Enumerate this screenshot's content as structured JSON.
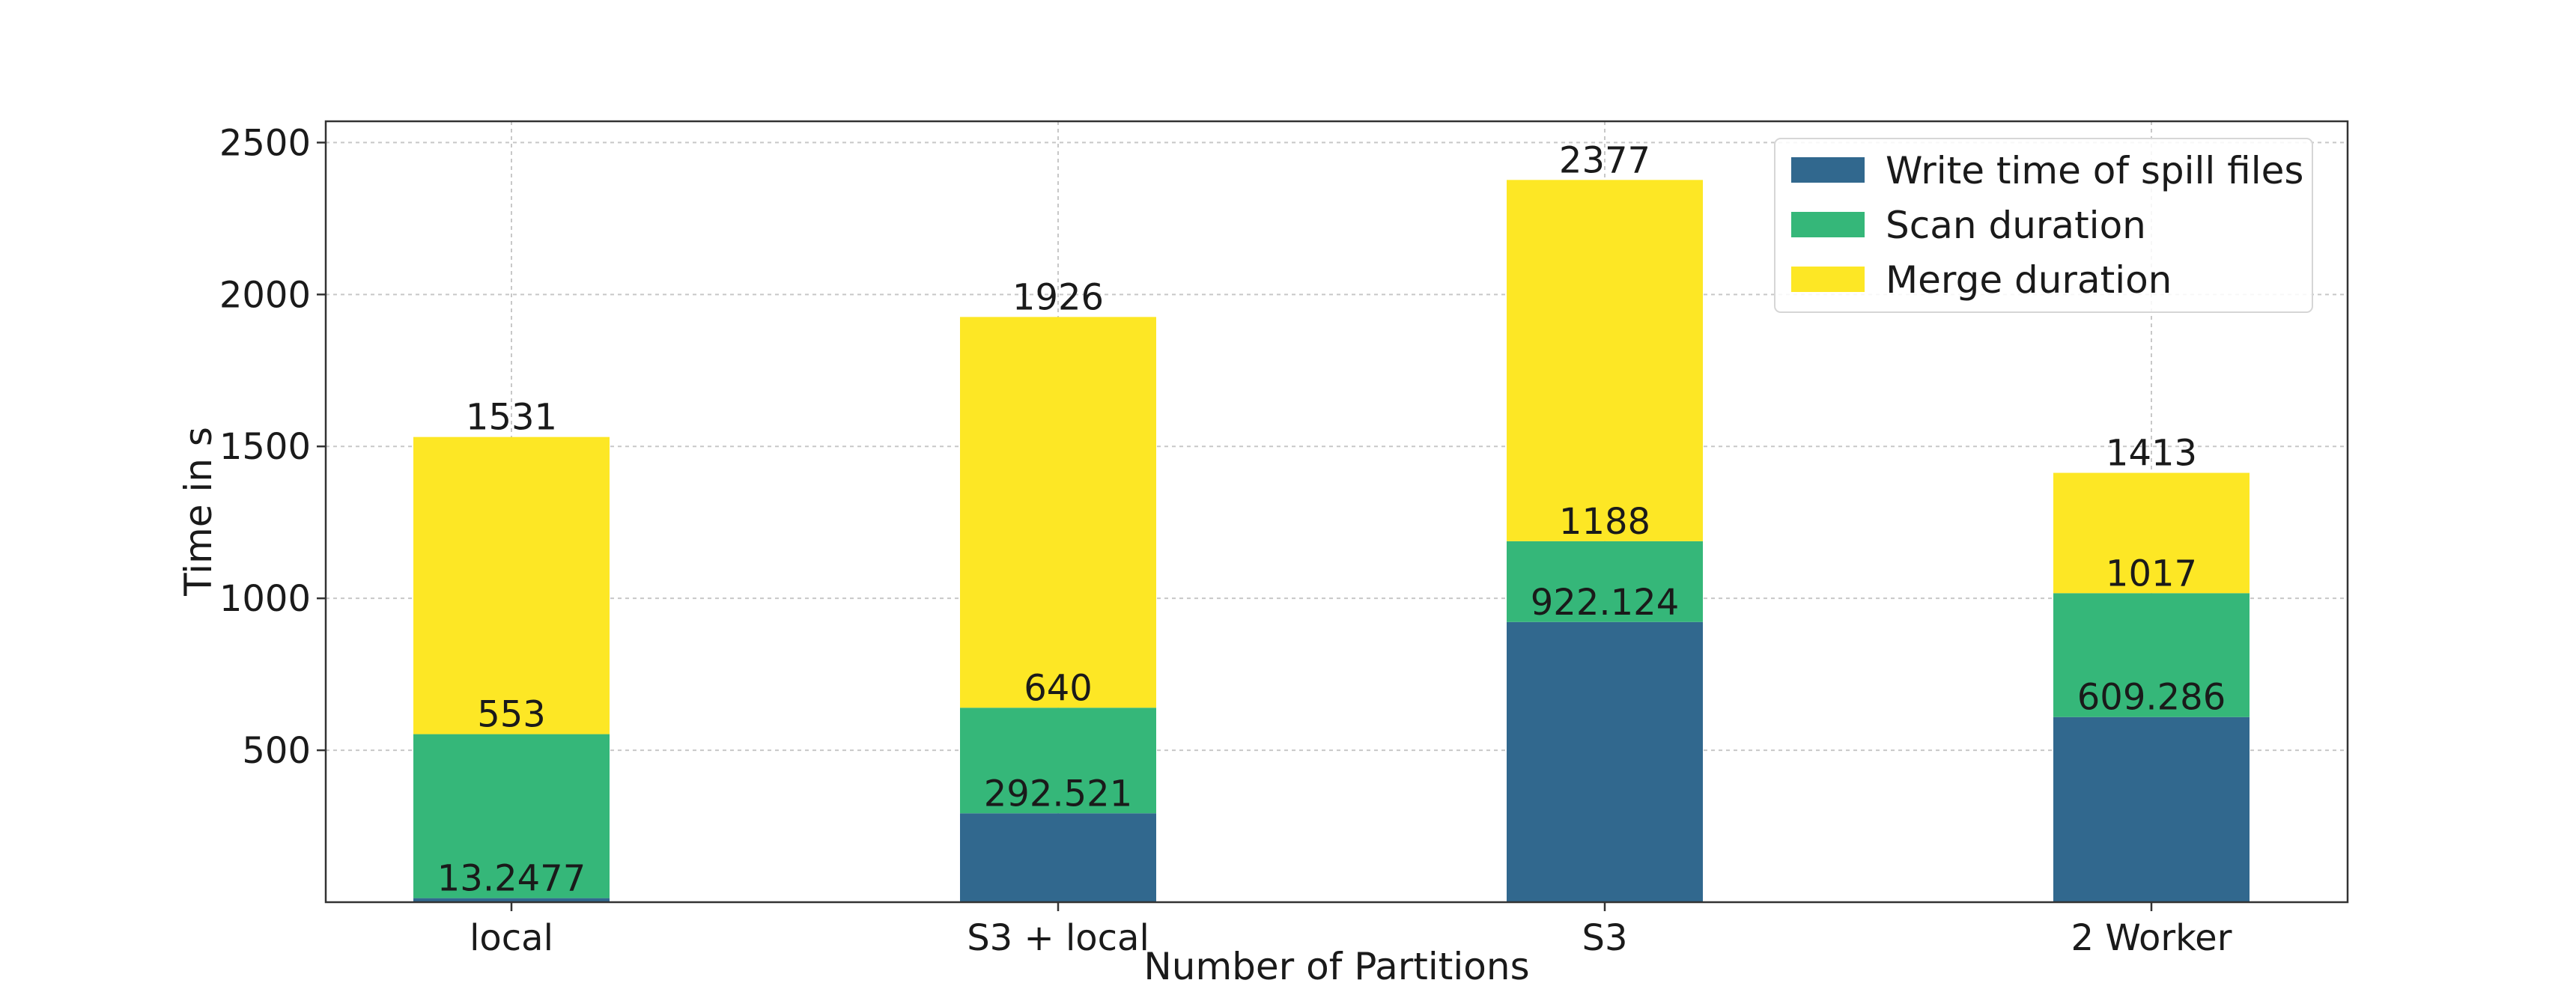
{
  "chart_data": {
    "type": "bar",
    "stacked": true,
    "categories": [
      "local",
      "S3 + local",
      "S3",
      "2 Worker"
    ],
    "series": [
      {
        "name": "Write time of spill files",
        "values": [
          13.2477,
          292.521,
          922.124,
          609.286
        ],
        "color": "#31688e",
        "labels": [
          "13.2477",
          "292.521",
          "922.124",
          "609.286"
        ]
      },
      {
        "name": "Scan duration",
        "values": [
          539.7523,
          347.479,
          265.876,
          407.714
        ],
        "color": "#35b779",
        "labels": [
          "553",
          "640",
          "1188",
          "1017"
        ]
      },
      {
        "name": "Merge duration",
        "values": [
          978,
          1286,
          1189,
          396
        ],
        "color": "#fde725",
        "labels": [
          "1531",
          "1926",
          "2377",
          "1413"
        ]
      }
    ],
    "xlabel": "Number of Partitions",
    "ylabel": "Time in s",
    "ylim": [
      0,
      2570
    ],
    "yticks": [
      500,
      1000,
      1500,
      2000,
      2500
    ],
    "grid": true,
    "legend_position": "top-right"
  }
}
